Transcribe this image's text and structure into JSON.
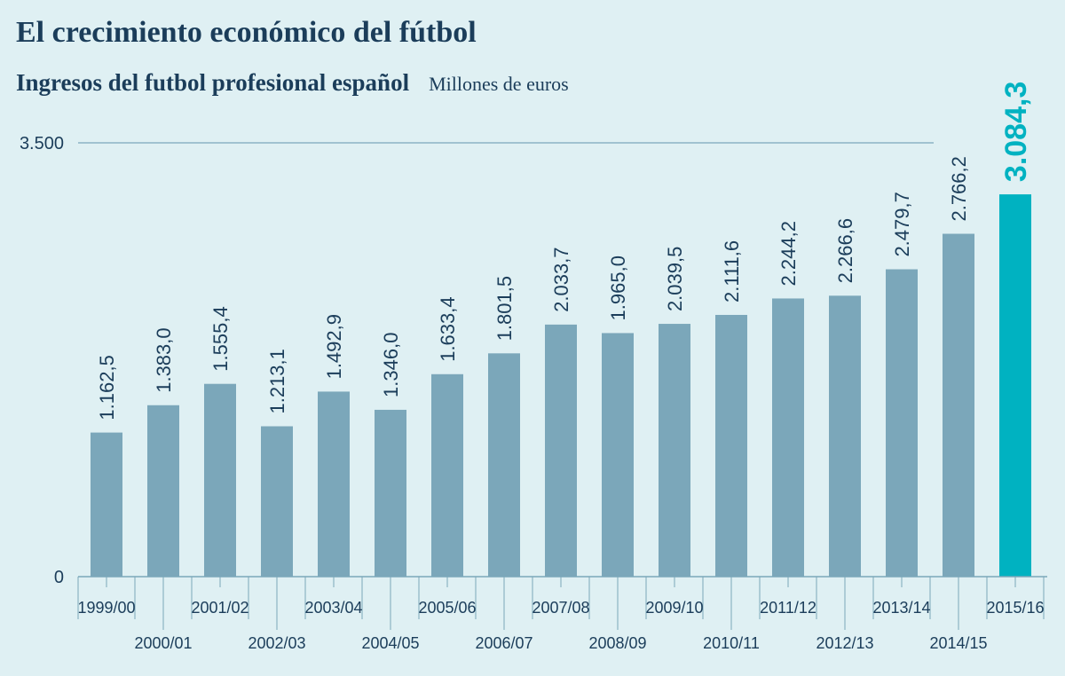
{
  "title": "El crecimiento económico del fútbol",
  "subtitle": "Ingresos  del futbol profesional español",
  "units": "Millones de euros",
  "colors": {
    "background": "#dff0f3",
    "bar": "#7ba7ba",
    "highlight": "#00b2c1",
    "text": "#1b3d5a",
    "axis": "#7ba7ba"
  },
  "chart_data": {
    "type": "bar",
    "title": "El crecimiento económico del fútbol",
    "subtitle": "Ingresos  del futbol profesional español",
    "ylabel": "Millones de euros",
    "xlabel": "",
    "ylim": [
      0,
      3500
    ],
    "yticks": [
      0,
      3500
    ],
    "ytick_labels": [
      "0",
      "3.500"
    ],
    "grid": false,
    "categories": [
      "1999/00",
      "2000/01",
      "2001/02",
      "2002/03",
      "2003/04",
      "2004/05",
      "2005/06",
      "2006/07",
      "2007/08",
      "2008/09",
      "2009/10",
      "2010/11",
      "2011/12",
      "2012/13",
      "2013/14",
      "2014/15",
      "2015/16"
    ],
    "values": [
      1162.5,
      1383.0,
      1555.4,
      1213.1,
      1492.9,
      1346.0,
      1633.4,
      1801.5,
      2033.7,
      1965.0,
      2039.5,
      2111.6,
      2244.2,
      2266.6,
      2479.7,
      2766.2,
      3084.3
    ],
    "data_labels": [
      "1.162,5",
      "1.383,0",
      "1.555,4",
      "1.213,1",
      "1.492,9",
      "1.346,0",
      "1.633,4",
      "1.801,5",
      "2.033,7",
      "1.965,0",
      "2.039,5",
      "2.111,6",
      "2.244,2",
      "2.266,6",
      "2.479,7",
      "2.766,2",
      "3.084,3"
    ],
    "highlight_index": 16
  }
}
